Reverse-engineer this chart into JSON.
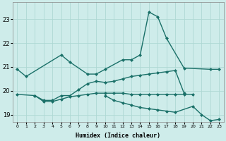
{
  "title": "",
  "xlabel": "Humidex (Indice chaleur)",
  "ylabel": "",
  "bg_color": "#ceecea",
  "line_color": "#1a7068",
  "grid_color": "#aed8d4",
  "xlim": [
    -0.5,
    23.5
  ],
  "ylim": [
    18.7,
    23.7
  ],
  "yticks": [
    19,
    20,
    21,
    22,
    23
  ],
  "xticks": [
    0,
    1,
    2,
    3,
    4,
    5,
    6,
    7,
    8,
    9,
    10,
    11,
    12,
    13,
    14,
    15,
    16,
    17,
    18,
    19,
    20,
    21,
    22,
    23
  ],
  "series": [
    {
      "x": [
        0,
        1,
        5,
        6,
        8,
        9,
        10,
        12,
        13,
        14,
        15,
        16,
        17,
        19,
        22,
        23
      ],
      "y": [
        20.9,
        20.6,
        21.5,
        21.2,
        20.7,
        20.7,
        20.9,
        21.3,
        21.3,
        21.5,
        23.3,
        23.1,
        22.2,
        20.95,
        20.9,
        20.9
      ],
      "marker": "D",
      "markersize": 2.0,
      "linewidth": 1.0
    },
    {
      "x": [
        2,
        3,
        4,
        5,
        6,
        7,
        8,
        9,
        10,
        11,
        12,
        13,
        14,
        15,
        16,
        17,
        18,
        19
      ],
      "y": [
        19.8,
        19.6,
        19.6,
        19.8,
        19.8,
        20.05,
        20.3,
        20.4,
        20.35,
        20.4,
        20.5,
        20.6,
        20.65,
        20.7,
        20.75,
        20.8,
        20.85,
        19.9
      ],
      "marker": "D",
      "markersize": 2.0,
      "linewidth": 1.0
    },
    {
      "x": [
        0,
        2,
        3,
        4,
        5,
        6,
        7,
        8,
        9,
        10,
        11,
        12,
        13,
        14,
        15,
        16,
        17,
        18,
        19,
        20
      ],
      "y": [
        19.85,
        19.8,
        19.55,
        19.55,
        19.65,
        19.75,
        19.8,
        19.85,
        19.9,
        19.9,
        19.9,
        19.9,
        19.85,
        19.85,
        19.85,
        19.85,
        19.85,
        19.85,
        19.85,
        19.85
      ],
      "marker": "D",
      "markersize": 2.0,
      "linewidth": 1.0
    },
    {
      "x": [
        10,
        11,
        12,
        13,
        14,
        15,
        16,
        17,
        18,
        20,
        21,
        22,
        23
      ],
      "y": [
        19.8,
        19.6,
        19.5,
        19.4,
        19.3,
        19.25,
        19.2,
        19.15,
        19.1,
        19.35,
        19.0,
        18.75,
        18.8
      ],
      "marker": "D",
      "markersize": 2.0,
      "linewidth": 1.0
    }
  ]
}
